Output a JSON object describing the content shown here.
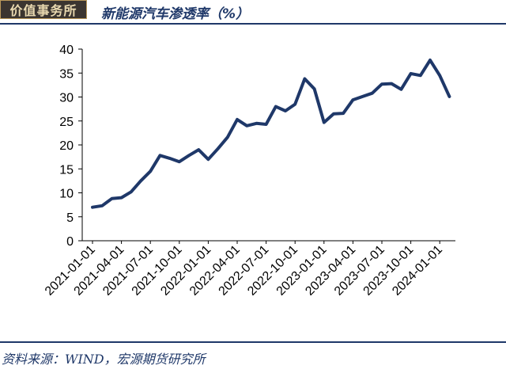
{
  "header": {
    "logo_text": "价值事务所",
    "title": "新能源汽车渗透率（%）"
  },
  "footer": {
    "source": "资料来源：WIND，宏源期货研究所"
  },
  "colors": {
    "line": "#1f3869",
    "accent": "#1f3869",
    "logo_bg": "#3b3530"
  },
  "chart_data": {
    "type": "line",
    "title": "新能源汽车渗透率（%）",
    "xlabel": "",
    "ylabel": "",
    "ylim": [
      0,
      40
    ],
    "yticks": [
      0,
      5,
      10,
      15,
      20,
      25,
      30,
      35,
      40
    ],
    "xtick_labels": [
      "2021-01-01",
      "2021-04-01",
      "2021-07-01",
      "2021-10-01",
      "2022-01-01",
      "2022-04-01",
      "2022-07-01",
      "2022-10-01",
      "2023-01-01",
      "2023-04-01",
      "2023-07-01",
      "2023-10-01",
      "2024-01-01"
    ],
    "grid": false,
    "legend": "none",
    "series": [
      {
        "x": [
          "2021-01-01",
          "2021-02-01",
          "2021-03-01",
          "2021-04-01",
          "2021-05-01",
          "2021-06-01",
          "2021-07-01",
          "2021-08-01",
          "2021-09-01",
          "2021-10-01",
          "2021-11-01",
          "2021-12-01",
          "2022-01-01",
          "2022-02-01",
          "2022-03-01",
          "2022-04-01",
          "2022-05-01",
          "2022-06-01",
          "2022-07-01",
          "2022-08-01",
          "2022-09-01",
          "2022-10-01",
          "2022-11-01",
          "2022-12-01",
          "2023-01-01",
          "2023-02-01",
          "2023-03-01",
          "2023-04-01",
          "2023-05-01",
          "2023-06-01",
          "2023-07-01",
          "2023-08-01",
          "2023-09-01",
          "2023-10-01",
          "2023-11-01",
          "2023-12-01",
          "2024-01-01",
          "2024-02-01"
        ],
        "values": [
          7.0,
          7.3,
          8.8,
          9.0,
          10.2,
          12.5,
          14.5,
          17.8,
          17.2,
          16.5,
          17.8,
          19.0,
          17.0,
          19.2,
          21.6,
          25.3,
          24.0,
          24.5,
          24.3,
          28.0,
          27.1,
          28.5,
          33.8,
          31.7,
          24.7,
          26.5,
          26.6,
          29.4,
          30.1,
          30.8,
          32.7,
          32.8,
          31.6,
          34.9,
          34.5,
          37.7,
          34.5,
          30.1
        ]
      }
    ]
  }
}
